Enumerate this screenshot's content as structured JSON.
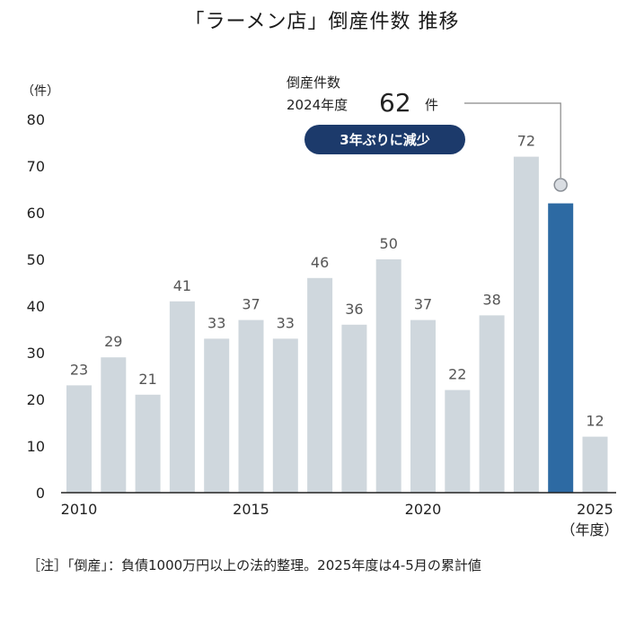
{
  "chart_data": {
    "type": "bar",
    "title": "「ラーメン店」倒産件数 推移",
    "y_unit": "（件）",
    "x_unit": "（年度）",
    "ylim": [
      0,
      80
    ],
    "yticks": [
      0,
      10,
      20,
      30,
      40,
      50,
      60,
      70,
      80
    ],
    "categories": [
      2010,
      2011,
      2012,
      2013,
      2014,
      2015,
      2016,
      2017,
      2018,
      2019,
      2020,
      2021,
      2022,
      2023,
      2024,
      2025
    ],
    "xtick_labels": [
      "2010",
      "2015",
      "2020",
      "2025"
    ],
    "values": [
      23,
      29,
      21,
      41,
      33,
      37,
      33,
      46,
      36,
      50,
      37,
      22,
      38,
      72,
      62,
      12
    ],
    "highlight_index": 14,
    "colors": {
      "default": "#cfd7dd",
      "highlight": "#2d6aa3",
      "badge": "#1c3a6b",
      "leader": "#888888"
    },
    "annotation": {
      "line1": "倒産件数",
      "line2_prefix": "2024年度",
      "value": "62",
      "value_unit": "件",
      "badge": "3年ぶりに減少"
    }
  },
  "footnote": "［注］「倒産」：負債1000万円以上の法的整理。2025年度は4-5月の累計値"
}
